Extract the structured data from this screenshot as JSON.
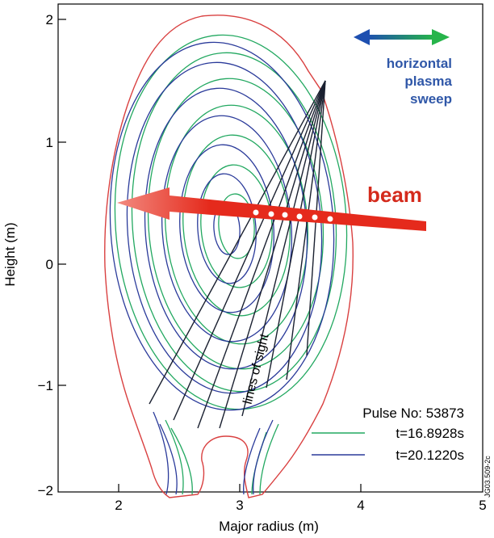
{
  "figure": {
    "xlabel": "Major radius (m)",
    "ylabel": "Height (m)",
    "xlim": [
      1.5,
      5
    ],
    "ylim": [
      -2,
      2.1
    ],
    "x_ticks": [
      "2",
      "3",
      "4",
      "5"
    ],
    "y_ticks": [
      "2",
      "1",
      "0",
      "−1",
      "−2"
    ],
    "sweep_label": [
      "horizontal",
      "plasma",
      "sweep"
    ],
    "beam_label": "beam",
    "lines_of_sight_label": "lines of sight",
    "pulse_label": "Pulse No: 53873",
    "legend": [
      {
        "label": "t=16.8928s",
        "color": "#22a860"
      },
      {
        "label": "t=20.1220s",
        "color": "#2a3a9a"
      }
    ],
    "side_code": "JG03.509-2c",
    "colors": {
      "vessel": "#d94040",
      "green_flux": "#22a860",
      "blue_flux": "#2a3a9a",
      "beam": "#e52a1c",
      "sight_lines": "#1a2030",
      "arrow_blue": "#1e4fb0",
      "arrow_green": "#26b44a"
    }
  }
}
